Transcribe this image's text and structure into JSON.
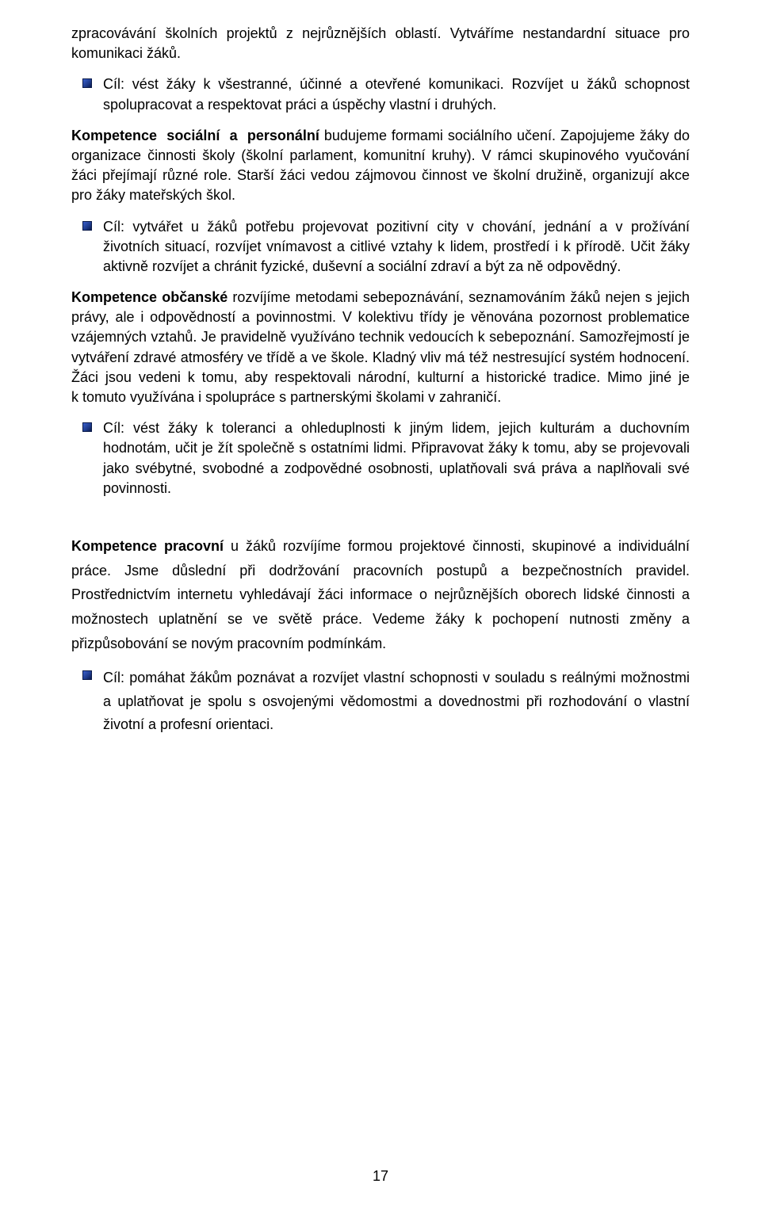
{
  "paragraphs": {
    "intro1": "zpracovávání školních projektů z nejrůznějších oblastí. Vytváříme nestandardní situace pro komunikaci žáků.",
    "intro1_bullet": "Cíl: vést žáky k všestranné, účinné a otevřené komunikaci. Rozvíjet u žáků schopnost spolupracovat a respektovat práci a úspěchy vlastní i druhých.",
    "social_heading": "Kompetence sociální a personální",
    "social_body": " budujeme formami sociálního učení. Zapojujeme žáky do organizace činnosti školy (školní parlament, komunitní kruhy). V rámci skupinového vyučování žáci přejímají různé role. Starší žáci vedou zájmovou činnost ve školní družině, organizují akce pro žáky mateřských škol.",
    "social_bullet": "Cíl: vytvářet u žáků potřebu projevovat pozitivní city v chování, jednání a v prožívání životních situací, rozvíjet vnímavost a citlivé vztahy k lidem, prostředí i k přírodě. Učit žáky aktivně rozvíjet a chránit fyzické, duševní a sociální zdraví a být za ně odpovědný.",
    "civic_heading": "Kompetence občanské",
    "civic_body": " rozvíjíme metodami sebepoznávání, seznamováním žáků nejen s jejich právy, ale i odpovědností a povinnostmi. V kolektivu třídy je věnována pozornost problematice vzájemných vztahů. Je pravidelně využíváno technik vedoucích k sebepoznání. Samozřejmostí je vytváření zdravé atmosféry ve třídě a ve škole. Kladný vliv má též nestresující systém hodnocení. Žáci jsou vedeni k tomu, aby respektovali národní, kulturní a historické tradice. Mimo jiné je k tomuto využívána i spolupráce s partnerskými školami v zahraničí.",
    "civic_bullet": "Cíl: vést žáky k toleranci a ohleduplnosti k jiným lidem, jejich kulturám a duchovním hodnotám, učit je žít společně s ostatními lidmi. Připravovat žáky k tomu, aby se projevovali jako svébytné, svobodné a zodpovědné osobnosti, uplatňovali svá práva a naplňovali své povinnosti.",
    "work_heading": "Kompetence pracovní",
    "work_body": " u žáků rozvíjíme formou projektové činnosti, skupinové a individuální práce. Jsme důslední při dodržování pracovních postupů a bezpečnostních pravidel. Prostřednictvím internetu vyhledávají žáci informace o nejrůznějších oborech lidské činnosti a možnostech uplatnění se ve světě práce. Vedeme žáky k pochopení nutnosti změny a přizpůsobování se novým pracovním podmínkám.",
    "work_bullet": "Cíl: pomáhat žákům poznávat a rozvíjet vlastní schopnosti v souladu s reálnými možnostmi a uplatňovat je spolu s osvojenými vědomostmi a dovednostmi při rozhodování o vlastní životní a profesní orientaci."
  },
  "page_number": "17"
}
